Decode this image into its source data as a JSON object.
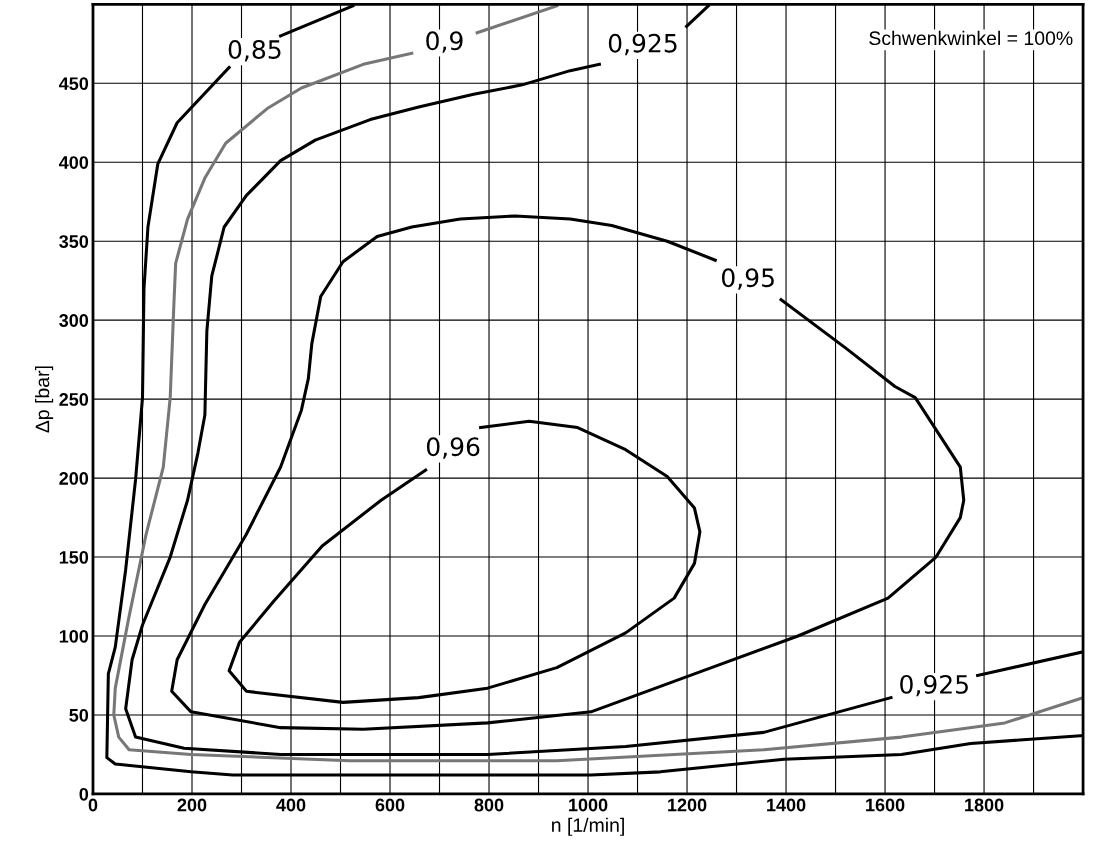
{
  "chart_data": {
    "type": "line",
    "xlabel": "n [1/min]",
    "ylabel": "Δp [bar]",
    "xlim": [
      0,
      2000
    ],
    "ylim": [
      0,
      500
    ],
    "xticks": [
      0,
      {
        "value": 100,
        "label": null
      },
      200,
      {
        "value": 300,
        "label": null
      },
      400,
      {
        "value": 500,
        "label": null
      },
      600,
      {
        "value": 700,
        "label": null
      },
      800,
      {
        "value": 900,
        "label": null
      },
      1000,
      {
        "value": 1100,
        "label": null
      },
      1200,
      {
        "value": 1300,
        "label": null
      },
      1400,
      {
        "value": 1500,
        "label": null
      },
      1600,
      {
        "value": 1700,
        "label": null
      },
      1800,
      {
        "value": 1900,
        "label": null
      }
    ],
    "yticks": [
      0,
      50,
      100,
      150,
      200,
      250,
      300,
      350,
      400,
      450
    ],
    "grid": true,
    "marker": "none",
    "line_style": "solid",
    "series": [
      {
        "name": "0,85",
        "color": "#000000",
        "x": [
          525,
          379,
          330,
          275,
          170,
          131,
          111,
          103,
          100,
          86,
          66,
          45,
          31,
          28,
          45,
          198,
          282,
          1006,
          1146,
          1396,
          1633,
          1773,
          2000
        ],
        "values": [
          499,
          480,
          null,
          460,
          425,
          399,
          359,
          320,
          251,
          199,
          142,
          93,
          76,
          23,
          19,
          14,
          12,
          12,
          14,
          22,
          25,
          32,
          37
        ]
      },
      {
        "name": "0,9",
        "color": "#777777",
        "x": [
          937,
          776,
          700,
          644,
          546,
          421,
          352,
          268,
          226,
          191,
          167,
          163,
          156,
          142,
          107,
          72,
          45,
          42,
          52,
          73,
          198,
          518,
          937,
          1355,
          1633,
          1842,
          2000
        ],
        "values": [
          499,
          482,
          null,
          469,
          462,
          447,
          434,
          412,
          390,
          364,
          336,
          307,
          251,
          207,
          164,
          111,
          67,
          50,
          36,
          28,
          25,
          21,
          21,
          28,
          36,
          45,
          61
        ]
      },
      {
        "name": "0,925",
        "color": "#000000",
        "x": [
          1243,
          1199,
          1100,
          1023,
          964,
          867,
          769,
          658,
          560,
          449,
          379,
          310,
          265,
          240,
          230,
          226,
          212,
          191,
          156,
          100,
          79,
          66,
          86,
          184,
          379,
          797,
          1076,
          1355,
          1612,
          1700,
          1787,
          2000
        ],
        "values": [
          499,
          486,
          null,
          462,
          458,
          449,
          443,
          435,
          427,
          414,
          401,
          379,
          359,
          328,
          293,
          240,
          216,
          186,
          150,
          107,
          85,
          54,
          36,
          29,
          25,
          25,
          30,
          39,
          61,
          null,
          75,
          90
        ]
      },
      {
        "name": "0,95",
        "color": "#000000",
        "x": [
          1390,
          1522,
          1620,
          1661,
          1752,
          1759,
          1752,
          1703,
          1606,
          1424,
          1215,
          1006,
          797,
          546,
          379,
          198,
          159,
          170,
          226,
          309,
          379,
          421,
          435,
          442,
          460,
          505,
          574,
          644,
          742,
          853,
          964,
          1048,
          1160,
          1257
        ],
        "values": [
          313,
          282,
          258,
          251,
          207,
          186,
          175,
          150,
          124,
          100,
          76,
          52,
          45,
          41,
          42,
          52,
          65,
          85,
          120,
          164,
          207,
          243,
          263,
          285,
          315,
          337,
          353,
          359,
          364,
          366,
          364,
          360,
          350,
          338
        ]
      },
      {
        "name": "0,96",
        "color": "#000000",
        "x": [
          783,
          881,
          979,
          1076,
          1160,
          1215,
          1226,
          1215,
          1174,
          1076,
          937,
          797,
          658,
          505,
          310,
          275,
          296,
          365,
          463,
          582,
          672
        ],
        "values": [
          232,
          236,
          232,
          218,
          201,
          181,
          166,
          146,
          124,
          102,
          80,
          67,
          61,
          58,
          65,
          78,
          96,
          122,
          157,
          186,
          205
        ]
      }
    ],
    "annotations": [
      "Schwenkwinkel = 100%"
    ]
  }
}
